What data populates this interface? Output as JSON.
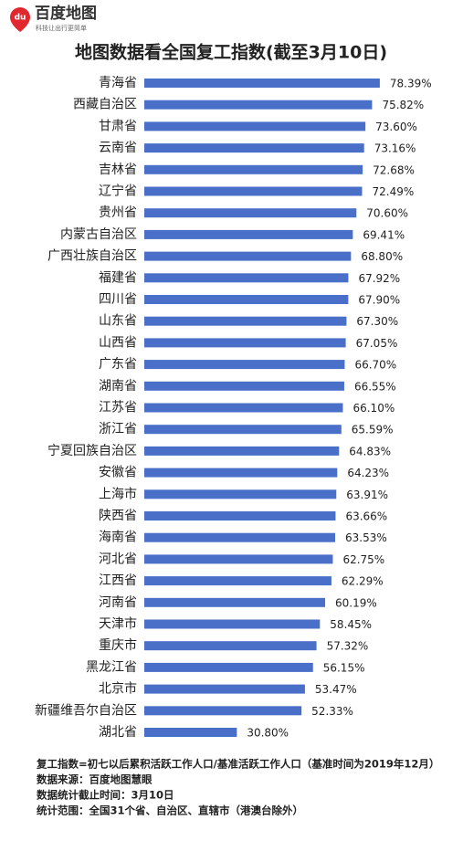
{
  "brand": {
    "name": "百度地图",
    "slogan": "科技让出行更简单",
    "icon_text": "du"
  },
  "chart_data": {
    "type": "bar",
    "orientation": "horizontal",
    "title": "地图数据看全国复工指数(截至3月10日)",
    "categories": [
      "青海省",
      "西藏自治区",
      "甘肃省",
      "云南省",
      "吉林省",
      "辽宁省",
      "贵州省",
      "内蒙古自治区",
      "广西壮族自治区",
      "福建省",
      "四川省",
      "山东省",
      "山西省",
      "广东省",
      "湖南省",
      "江苏省",
      "浙江省",
      "宁夏回族自治区",
      "安徽省",
      "上海市",
      "陕西省",
      "海南省",
      "河北省",
      "江西省",
      "河南省",
      "天津市",
      "重庆市",
      "黑龙江省",
      "北京市",
      "新疆维吾尔自治区",
      "湖北省"
    ],
    "values": [
      78.39,
      75.82,
      73.6,
      73.16,
      72.68,
      72.49,
      70.6,
      69.41,
      68.8,
      67.92,
      67.9,
      67.3,
      67.05,
      66.7,
      66.55,
      66.1,
      65.59,
      64.83,
      64.23,
      63.91,
      63.66,
      63.53,
      62.75,
      62.29,
      60.19,
      58.45,
      57.32,
      56.15,
      53.47,
      52.33,
      30.8
    ],
    "value_labels": [
      "78.39%",
      "75.82%",
      "73.60%",
      "73.16%",
      "72.68%",
      "72.49%",
      "70.60%",
      "69.41%",
      "68.80%",
      "67.92%",
      "67.90%",
      "67.30%",
      "67.05%",
      "66.70%",
      "66.55%",
      "66.10%",
      "65.59%",
      "64.83%",
      "64.23%",
      "63.91%",
      "63.66%",
      "63.53%",
      "62.75%",
      "62.29%",
      "60.19%",
      "58.45%",
      "57.32%",
      "56.15%",
      "53.47%",
      "52.33%",
      "30.80%"
    ],
    "color": "#4a6fc8",
    "notes": [
      "复工指数=初七以后累积活跃工作人口/基准活跃工作人口（基准时间为2019年12月）",
      "数据来源：百度地图慧眼",
      "数据统计截止时间：3月10日",
      "统计范围：全国31个省、自治区、直辖市（港澳台除外）"
    ]
  }
}
